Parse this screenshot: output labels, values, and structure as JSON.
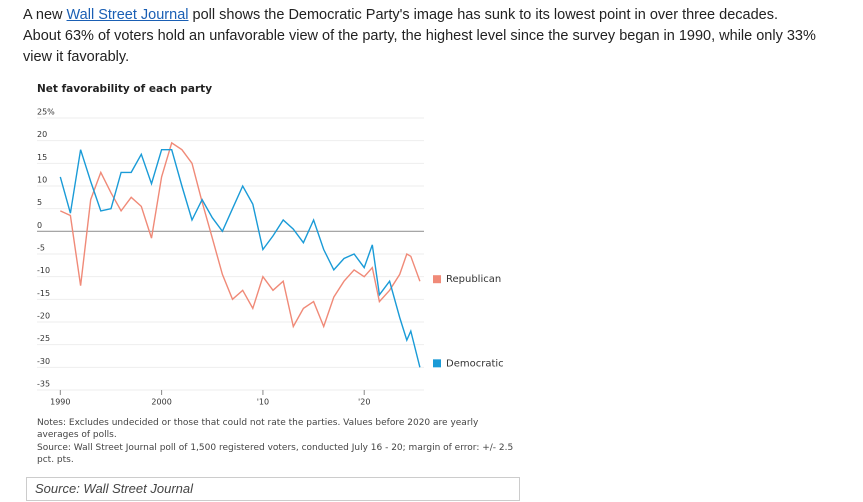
{
  "intro": {
    "before": "A new ",
    "link": "Wall Street Journal",
    "after": " poll shows the Democratic Party's image has sunk to its lowest point in over three decades.",
    "line2": "About 63% of voters hold an unfavorable view of the party, the highest level since the survey began in 1990, while only 33%",
    "line3": "view it favorably."
  },
  "chart_data": {
    "type": "line",
    "title": "Net favorability of each party",
    "x": [
      1990,
      1991,
      1992,
      1993,
      1994,
      1995,
      1996,
      1997,
      1998,
      1999,
      2000,
      2001,
      2002,
      2003,
      2004,
      2005,
      2006,
      2007,
      2008,
      2009,
      2010,
      2011,
      2012,
      2013,
      2014,
      2015,
      2016,
      2017,
      2018,
      2019,
      2020,
      2020.8,
      2021.5,
      2022.5,
      2023.5,
      2024.2,
      2024.6,
      2025.5
    ],
    "series": [
      {
        "name": "Republican",
        "color": "#f08a78",
        "values": [
          4.5,
          3.5,
          -12,
          7,
          13,
          8.5,
          4.5,
          7.5,
          5.5,
          -1.5,
          12,
          19.5,
          18,
          15,
          6.5,
          -1.5,
          -9.5,
          -15,
          -13,
          -17,
          -10,
          -13,
          -11,
          -21,
          -17,
          -15.5,
          -21,
          -14.5,
          -11,
          -8.5,
          -10,
          -8,
          -15.5,
          -13,
          -9.5,
          -5,
          -5.5,
          -11
        ]
      },
      {
        "name": "Democratic",
        "color": "#1a9bd7",
        "values": [
          12,
          4,
          18,
          11,
          4.5,
          5,
          13,
          13,
          17,
          10.5,
          18,
          18,
          10,
          2.5,
          7,
          3,
          0,
          5,
          10,
          6,
          -4,
          -1,
          2.5,
          0.5,
          -2.5,
          2.5,
          -4,
          -8.5,
          -6,
          -5,
          -8,
          -3,
          -14,
          -11,
          -19,
          -24,
          -22,
          -30
        ]
      }
    ],
    "xlim": [
      1987.7,
      2025.9
    ],
    "xticks": [
      1990,
      2000,
      {
        "value": 2010,
        "label": "'10"
      },
      {
        "value": 2020,
        "label": "'20"
      }
    ],
    "ylim": [
      -35,
      25
    ],
    "yticks": [
      {
        "value": 25,
        "label": "25%"
      },
      20,
      15,
      10,
      5,
      0,
      -5,
      -10,
      -15,
      -20,
      -25,
      -30,
      -35
    ],
    "grid": true,
    "notes": "Notes: Excludes undecided or those that could not rate the parties. Values before 2020 are yearly averages of polls.",
    "source": "Source: Wall Street Journal poll of 1,500 registered voters, conducted July 16 - 20; margin of error: +/- 2.5 pct. pts."
  },
  "source_box": "Source: Wall Street Journal"
}
